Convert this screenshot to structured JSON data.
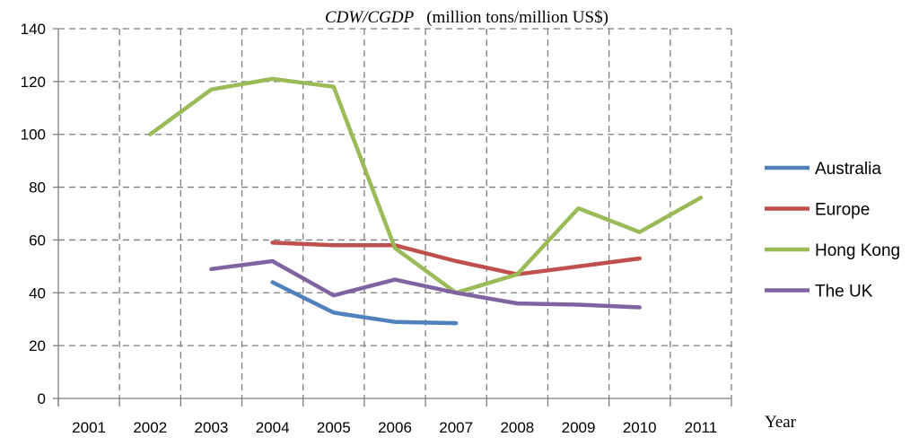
{
  "chart_data": {
    "type": "line",
    "ylabel_italic": "CDW/CGDP",
    "ylabel_units": "(million tons/million US$)",
    "xlabel": "Year",
    "categories": [
      "2001",
      "2002",
      "2003",
      "2004",
      "2005",
      "2006",
      "2007",
      "2008",
      "2009",
      "2010",
      "2011"
    ],
    "ylim": [
      0,
      140
    ],
    "yticks": [
      "0",
      "20",
      "40",
      "60",
      "80",
      "100",
      "120",
      "140"
    ],
    "grid": true,
    "legend_position": "right",
    "series": [
      {
        "name": "Australia",
        "color": "#4f81bd",
        "values": [
          null,
          null,
          null,
          44,
          32.5,
          29,
          28.5,
          null,
          null,
          null,
          null
        ]
      },
      {
        "name": "Europe",
        "color": "#c0504d",
        "values": [
          null,
          null,
          null,
          59,
          58,
          58,
          52,
          47,
          50,
          53,
          null
        ]
      },
      {
        "name": "Hong Kong",
        "color": "#9bbb59",
        "values": [
          null,
          100,
          117,
          121,
          118,
          57,
          40,
          47,
          72,
          63,
          76
        ]
      },
      {
        "name": "The UK",
        "color": "#8064a2",
        "values": [
          null,
          null,
          49,
          52,
          39,
          45,
          40,
          36,
          35.5,
          34.5,
          null
        ]
      }
    ]
  }
}
